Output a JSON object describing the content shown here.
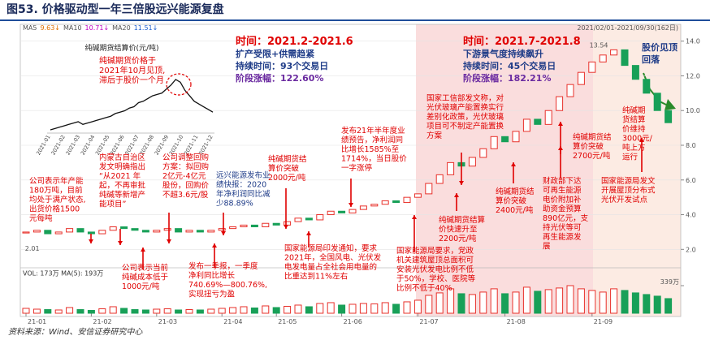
{
  "chart_data": {
    "type": "candlestick",
    "title": "图53. 价格驱动型一年三倍股远兴能源复盘",
    "source": "资料来源：Wind、安信证券研究中心",
    "date_range": "2021/02/01-2021/09/30(162日)",
    "ma_legend": [
      {
        "text": "MA5",
        "color": "#555555"
      },
      {
        "text": "9.63↓",
        "color": "#e07000"
      },
      {
        "text": "MA10",
        "color": "#555555"
      },
      {
        "text": "10.71↓",
        "color": "#c000c0"
      },
      {
        "text": "MA20",
        "color": "#555555"
      },
      {
        "text": "11.51↓",
        "color": "#2060d0"
      }
    ],
    "vol_legend": "VOL: 173万 MA(5): 193万",
    "up_color": "#e8302a",
    "down_color": "#18a058",
    "categories": [
      "21-01",
      null,
      null,
      null,
      null,
      null,
      "21-02",
      null,
      null,
      null,
      null,
      null,
      "21-03",
      null,
      null,
      null,
      null,
      null,
      "21-04",
      null,
      null,
      null,
      null,
      "21-05",
      null,
      null,
      null,
      null,
      null,
      "21-06",
      null,
      null,
      null,
      null,
      null,
      null,
      "21-07",
      null,
      null,
      null,
      null,
      null,
      null,
      null,
      "21-08",
      null,
      null,
      null,
      null,
      null,
      null,
      null,
      "21-09",
      null,
      null,
      null,
      null,
      null,
      null,
      null
    ],
    "closes": [
      3.0,
      3.1,
      2.9,
      3.0,
      3.2,
      3.0,
      2.9,
      3.1,
      3.3,
      3.2,
      3.1,
      3.0,
      3.1,
      3.2,
      3.0,
      3.1,
      3.0,
      3.1,
      3.2,
      3.3,
      3.4,
      3.3,
      3.5,
      3.4,
      3.6,
      3.8,
      3.7,
      4.0,
      4.2,
      4.1,
      4.3,
      4.5,
      4.6,
      4.8,
      4.7,
      5.0,
      5.2,
      5.8,
      6.3,
      7.0,
      6.8,
      7.3,
      7.8,
      8.5,
      8.2,
      8.8,
      9.5,
      9.2,
      10.0,
      10.8,
      11.5,
      12.2,
      12.8,
      13.2,
      13.5,
      12.6,
      11.8,
      11.0,
      10.0,
      9.3
    ],
    "volumes": [
      60,
      50,
      45,
      40,
      70,
      45,
      35,
      55,
      80,
      60,
      45,
      40,
      50,
      55,
      40,
      45,
      40,
      50,
      60,
      70,
      80,
      65,
      90,
      70,
      85,
      100,
      80,
      120,
      130,
      100,
      110,
      120,
      115,
      130,
      110,
      140,
      160,
      220,
      250,
      300,
      240,
      230,
      260,
      300,
      240,
      260,
      320,
      270,
      290,
      310,
      339,
      300,
      280,
      260,
      300,
      280,
      250,
      230,
      210,
      180
    ],
    "ylim": [
      1.5,
      14.5
    ],
    "yticks": [
      {
        "value": 2,
        "label": "2.0"
      },
      {
        "value": 4,
        "label": "4.0"
      },
      {
        "value": 6,
        "label": "6.0"
      },
      {
        "value": 8,
        "label": "8.0"
      },
      {
        "value": 10,
        "label": "10.0"
      },
      {
        "value": 12,
        "label": "12.0"
      },
      {
        "value": 14,
        "label": "14.0"
      }
    ],
    "vlim": [
      0,
      339
    ],
    "vticks": [
      {
        "value": 339,
        "label": "339万"
      }
    ],
    "high": 13.54,
    "low": 2.01,
    "inset": {
      "title": "纯碱期货结算价(元/吨)",
      "color": "#111111",
      "categories": [
        "2021-01",
        "2021-02",
        "2021-03",
        "2021-04",
        "2021-05",
        "2021-06",
        "2021-07",
        "2021-08",
        "2021-09",
        "2021-10",
        "2021-11",
        "2021-12"
      ],
      "values": [
        1650,
        1700,
        1750,
        1800,
        1850,
        1900,
        1950,
        1850,
        1900,
        1950,
        2000,
        2050,
        2100,
        2150,
        2250,
        2300,
        2350,
        2450,
        2500,
        2650,
        2700,
        2800,
        2900,
        2950,
        3000,
        3150,
        3300,
        3500,
        3400,
        3100,
        2900,
        2700,
        2600,
        2500,
        2400,
        2300
      ],
      "note": [
        "纯碱期货价格于",
        "2021年10月见顶,",
        "滞后于股价一个月"
      ]
    },
    "annotations": [
      {
        "color": "#e00000",
        "big": true,
        "lines": [
          "时间：2021.2-2021.6",
          "扩产受限+供需趋紧",
          "持续时间：93个交易日",
          "阶段涨幅：122.60%"
        ]
      },
      {
        "color": "#e00000",
        "big": true,
        "lines": [
          "时间：2021.7-2021.8",
          "下游景气度持续飙升",
          "持续时间：45个交易日",
          "阶段涨幅：182.21%"
        ]
      },
      {
        "color": "#1f3c88",
        "big": true,
        "lines": [
          "股价见顶",
          "回落"
        ]
      },
      {
        "color": "#e00000",
        "lines": [
          "公司表示年产能",
          "180万吨，目前",
          "均处于满产状态,",
          "出货价格1500",
          "元每吨"
        ]
      },
      {
        "color": "#e00000",
        "lines": [
          "内蒙古自治区",
          "发文明确指出",
          "“从2021 年",
          "起，不再审批",
          "纯碱等新增产",
          "能项目”"
        ]
      },
      {
        "color": "#e00000",
        "lines": [
          "公司调整回购",
          "方案：拟回购",
          "2亿元-4亿元",
          "股份，回购价",
          "不超3.6元/股"
        ]
      },
      {
        "color": "#1f3c88",
        "lines": [
          "远兴能源发布业",
          "绩快报：2020",
          "年净利润同比减",
          "少88.89%"
        ]
      },
      {
        "color": "#e00000",
        "lines": [
          "纯碱期货结",
          "算价突破",
          "2000元/吨"
        ]
      },
      {
        "color": "#e00000",
        "lines": [
          "发布21年半年度业",
          "绩预告，净利润同",
          "比增长1585%至",
          "1714%，当日股价",
          "一字涨停"
        ]
      },
      {
        "color": "#e00000",
        "lines": [
          "国家工信部发文称，对",
          "光伏玻璃产能置换实行",
          "差别化政策，光伏玻璃",
          "项目可不制定产能置换",
          "方案"
        ]
      },
      {
        "color": "#e00000",
        "lines": [
          "纯碱期货结算",
          "价快速升至",
          "2200元/吨"
        ]
      },
      {
        "color": "#e00000",
        "lines": [
          "纯碱期货结",
          "算价突破",
          "2400元/吨"
        ]
      },
      {
        "color": "#e00000",
        "lines": [
          "纯碱期货结",
          "算价突破",
          "2700元/吨"
        ]
      },
      {
        "color": "#e00000",
        "lines": [
          "财政部下达",
          "可再生能源",
          "电价附加补",
          "助资金预算",
          "890亿元，支",
          "持光伏等可",
          "再生能源发",
          "展"
        ]
      },
      {
        "color": "#e00000",
        "lines": [
          "纯碱期",
          "货结算",
          "价维持",
          "3000元/",
          "吨上方",
          "运行"
        ]
      },
      {
        "color": "#e00000",
        "lines": [
          "国家能源局发文",
          "开展屋顶分布式",
          "光伏开发试点"
        ]
      },
      {
        "color": "#e00000",
        "lines": [
          "公司表示当前",
          "纯碱成本低于",
          "1000元/吨"
        ]
      },
      {
        "color": "#e00000",
        "lines": [
          "发布一季报，一季度",
          "净利同比增长",
          "740.69%—800.76%,",
          "实现扭亏为盈"
        ]
      },
      {
        "color": "#e00000",
        "lines": [
          "国家能源局印发通知，要求",
          "2021年，全国风电、光伏发",
          "电发电量占全社会用电量的",
          "比重达到11%左右"
        ]
      },
      {
        "color": "#e00000",
        "lines": [
          "国家能源局要求，党政",
          "机关建筑屋顶总面积可",
          "安装光伏发电比例不低",
          "于50%，学校、医院等",
          "比例不低于40%"
        ]
      }
    ]
  }
}
